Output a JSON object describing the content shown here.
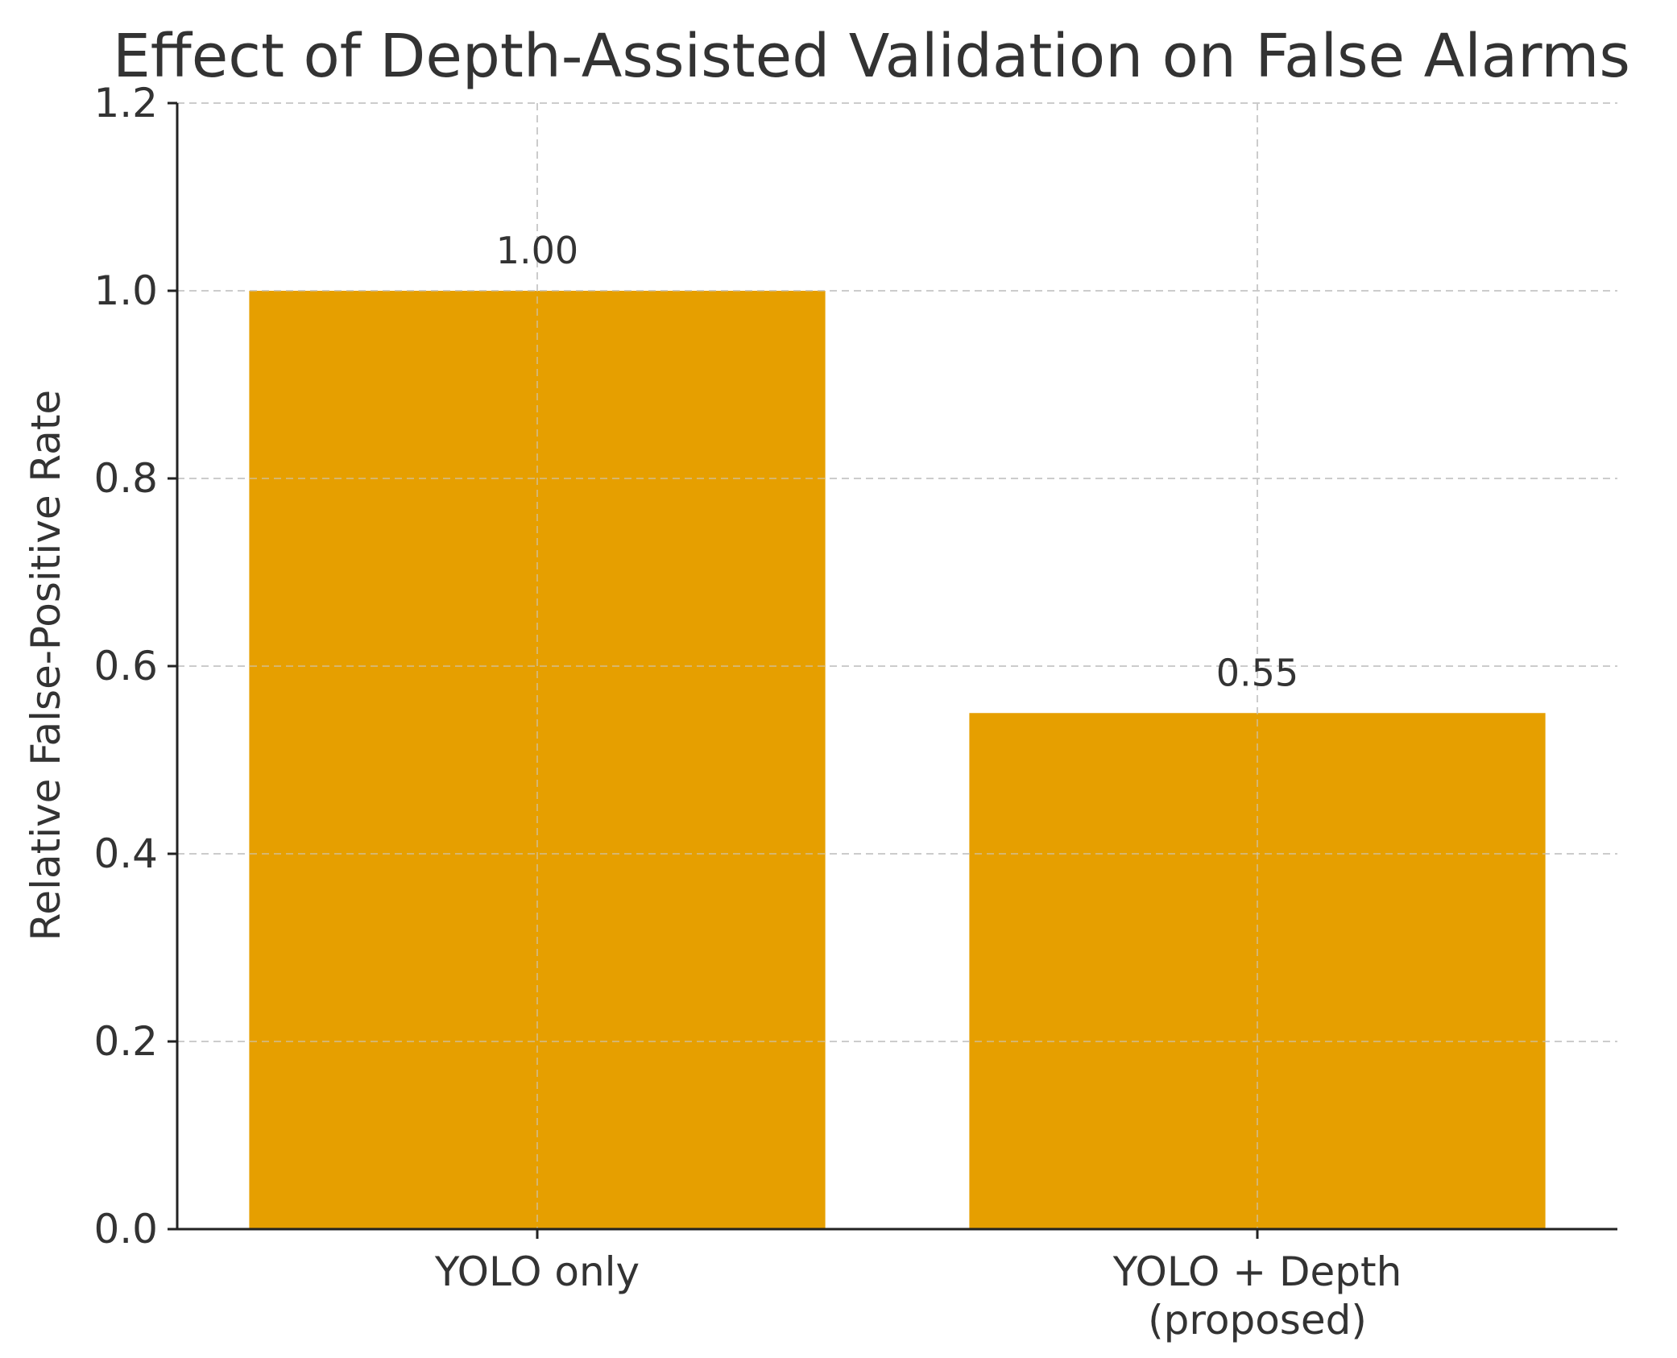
{
  "chart_data": {
    "type": "bar",
    "title": "Effect of Depth-Assisted Validation on False Alarms",
    "xlabel": "",
    "ylabel": "Relative False-Positive Rate",
    "categories": [
      [
        "YOLO only"
      ],
      [
        "YOLO + Depth",
        "(proposed)"
      ]
    ],
    "values": [
      1.0,
      0.55
    ],
    "value_labels": [
      "1.00",
      "0.55"
    ],
    "ylim": [
      0,
      1.2
    ],
    "yticks": [
      0.0,
      0.2,
      0.4,
      0.6,
      0.8,
      1.0,
      1.2
    ],
    "ytick_labels": [
      "0.0",
      "0.2",
      "0.4",
      "0.6",
      "0.8",
      "1.0",
      "1.2"
    ],
    "grid": true,
    "colors": {
      "bar": "#E69F00",
      "grid": "#d0d0d0",
      "axis": "#222222",
      "text": "#333333"
    }
  }
}
